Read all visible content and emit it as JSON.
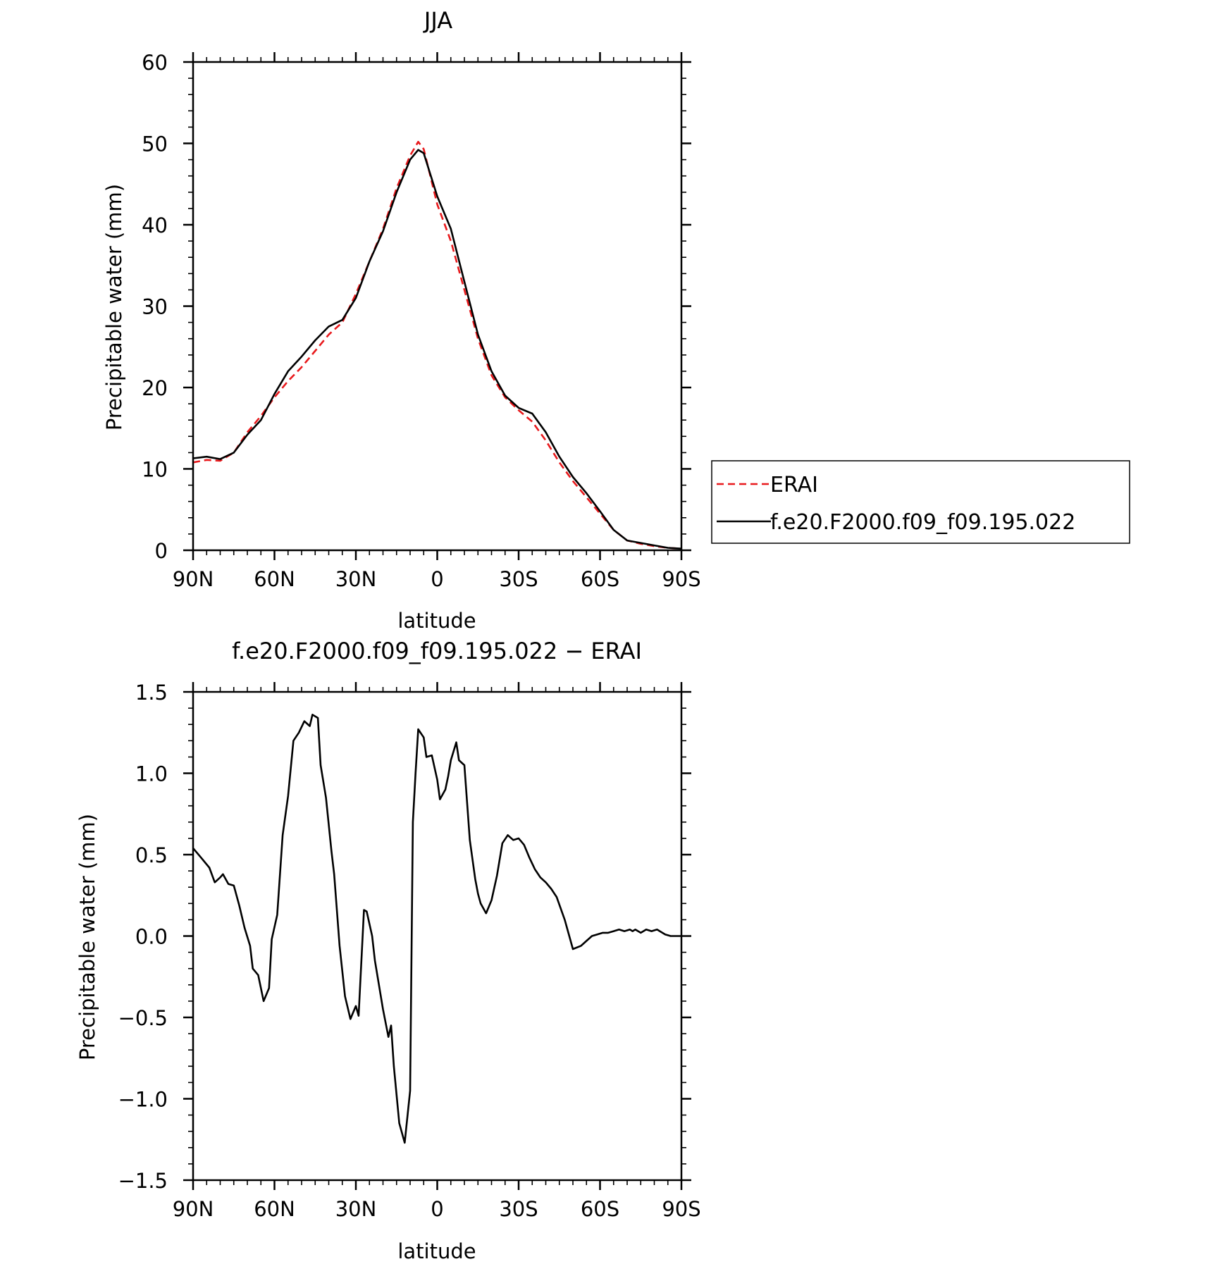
{
  "chart_data": [
    {
      "type": "line",
      "title": "JJA",
      "xlabel": "latitude",
      "ylabel": "Precipitable water (mm)",
      "x_ticks": [
        90,
        60,
        30,
        0,
        -30,
        -60,
        -90
      ],
      "x_tick_labels": [
        "90N",
        "60N",
        "30N",
        "0",
        "30S",
        "60S",
        "90S"
      ],
      "xlim": [
        90,
        -90
      ],
      "ylim": [
        0,
        60
      ],
      "y_ticks": [
        0,
        10,
        20,
        30,
        40,
        50,
        60
      ],
      "y_tick_labels": [
        "0",
        "10",
        "20",
        "30",
        "40",
        "50",
        "60"
      ],
      "legend_position": "right",
      "grid": false,
      "x": [
        90,
        85,
        80,
        75,
        70,
        65,
        60,
        55,
        50,
        45,
        40,
        35,
        30,
        25,
        20,
        15,
        10,
        7,
        5,
        0,
        -5,
        -10,
        -15,
        -20,
        -25,
        -30,
        -35,
        -40,
        -45,
        -50,
        -55,
        -60,
        -65,
        -70,
        -75,
        -80,
        -85,
        -90
      ],
      "series": [
        {
          "name": "ERAI",
          "color": "#e8191c",
          "dash": "dashed",
          "values": [
            10.8,
            11.1,
            11.0,
            12.0,
            14.5,
            16.5,
            18.8,
            20.8,
            22.5,
            24.5,
            26.5,
            28.0,
            31.5,
            35.5,
            39.5,
            44.5,
            48.5,
            50.2,
            49.3,
            42.5,
            38.0,
            32.0,
            26.0,
            21.5,
            18.8,
            17.2,
            15.8,
            13.5,
            10.8,
            8.5,
            6.5,
            4.5,
            2.5,
            1.2,
            0.8,
            0.5,
            0.3,
            0.2
          ]
        },
        {
          "name": "f.e20.F2000.f09_f09.195.022",
          "color": "#000000",
          "dash": "solid",
          "values": [
            11.3,
            11.5,
            11.2,
            12.0,
            14.2,
            16.0,
            19.2,
            22.0,
            23.8,
            25.8,
            27.5,
            28.3,
            31.0,
            35.5,
            39.2,
            44.0,
            48.0,
            49.2,
            48.8,
            43.5,
            39.5,
            33.0,
            26.5,
            22.0,
            19.0,
            17.5,
            16.8,
            14.5,
            11.5,
            9.0,
            7.0,
            4.8,
            2.5,
            1.2,
            0.9,
            0.6,
            0.3,
            0.2
          ]
        }
      ]
    },
    {
      "type": "line",
      "title": "f.e20.F2000.f09_f09.195.022 − ERAI",
      "xlabel": "latitude",
      "ylabel": "Precipitable water (mm)",
      "x_ticks": [
        90,
        60,
        30,
        0,
        -30,
        -60,
        -90
      ],
      "x_tick_labels": [
        "90N",
        "60N",
        "30N",
        "0",
        "30S",
        "60S",
        "90S"
      ],
      "xlim": [
        90,
        -90
      ],
      "ylim": [
        -1.5,
        1.5
      ],
      "y_ticks": [
        -1.5,
        -1.0,
        -0.5,
        0.0,
        0.5,
        1.0,
        1.5
      ],
      "y_tick_labels": [
        "−1.5",
        "−1.0",
        "−0.5",
        "0.0",
        "0.5",
        "1.0",
        "1.5"
      ],
      "grid": false,
      "x": [
        90,
        87,
        84,
        82,
        80,
        79,
        77,
        75,
        73,
        71,
        69,
        68,
        66,
        64,
        62,
        61,
        59,
        57,
        55,
        53,
        51,
        49,
        47,
        46,
        44,
        43,
        41,
        39,
        38,
        36,
        34,
        32,
        30,
        29,
        27,
        26,
        24,
        23,
        20,
        18,
        17,
        16,
        14,
        12,
        10,
        9,
        8,
        7,
        5,
        4,
        2,
        0,
        -1,
        -3,
        -4,
        -5,
        -7,
        -8,
        -10,
        -12,
        -14,
        -15,
        -16,
        -18,
        -20,
        -22,
        -24,
        -26,
        -28,
        -30,
        -32,
        -34,
        -36,
        -38,
        -40,
        -42,
        -44,
        -47,
        -50,
        -53,
        -55,
        -57,
        -59,
        -61,
        -63,
        -65,
        -67,
        -69,
        -71,
        -72,
        -73,
        -75,
        -77,
        -79,
        -81,
        -84,
        -86,
        -87,
        -88,
        -90
      ],
      "series": [
        {
          "name": "f.e20.F2000.f09_f09.195.022 − ERAI",
          "color": "#000000",
          "dash": "solid",
          "values": [
            0.54,
            0.48,
            0.42,
            0.33,
            0.36,
            0.38,
            0.32,
            0.31,
            0.19,
            0.05,
            -0.06,
            -0.2,
            -0.24,
            -0.4,
            -0.32,
            -0.02,
            0.13,
            0.62,
            0.86,
            1.2,
            1.25,
            1.32,
            1.29,
            1.36,
            1.34,
            1.05,
            0.85,
            0.52,
            0.38,
            -0.06,
            -0.37,
            -0.51,
            -0.43,
            -0.49,
            0.16,
            0.15,
            0.0,
            -0.15,
            -0.45,
            -0.62,
            -0.55,
            -0.8,
            -1.15,
            -1.27,
            -0.95,
            0.7,
            1.0,
            1.27,
            1.22,
            1.1,
            1.11,
            0.96,
            0.84,
            0.9,
            0.98,
            1.08,
            1.19,
            1.08,
            1.05,
            0.59,
            0.35,
            0.26,
            0.2,
            0.14,
            0.22,
            0.37,
            0.57,
            0.62,
            0.59,
            0.6,
            0.56,
            0.48,
            0.41,
            0.36,
            0.33,
            0.29,
            0.24,
            0.1,
            -0.08,
            -0.06,
            -0.03,
            0.0,
            0.01,
            0.02,
            0.02,
            0.03,
            0.04,
            0.03,
            0.04,
            0.03,
            0.04,
            0.02,
            0.04,
            0.03,
            0.04,
            0.01,
            0.0,
            0.0,
            0.0,
            0.0
          ]
        }
      ]
    }
  ]
}
